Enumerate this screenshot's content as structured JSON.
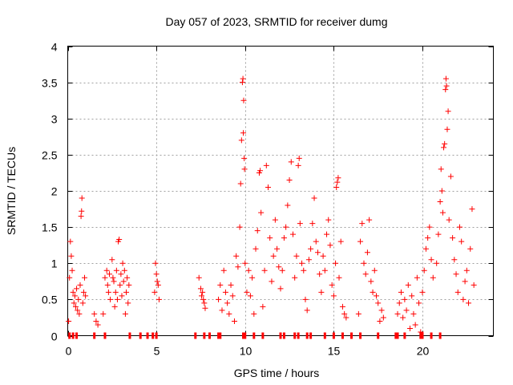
{
  "chart_data": {
    "type": "scatter",
    "title": "Day 057 of 2023, SRMTID for receiver dumg",
    "xlabel": "GPS time / hours",
    "ylabel": "SRMTID / TECUs",
    "xlim": [
      0,
      24
    ],
    "ylim": [
      0,
      4
    ],
    "x_ticks": [
      0,
      5,
      10,
      15,
      20
    ],
    "x_tick_labels": [
      "0",
      "5",
      "10",
      "15",
      "20"
    ],
    "y_ticks": [
      0,
      0.5,
      1,
      1.5,
      2,
      2.5,
      3,
      3.5,
      4
    ],
    "y_tick_labels": [
      "0",
      "0.5",
      "1",
      "1.5",
      "2",
      "2.5",
      "3",
      "3.5",
      "4"
    ],
    "grid": true,
    "marker": "+",
    "marker_color": "#ff0000",
    "series": [
      {
        "name": "SRMTID",
        "points": [
          [
            0.05,
            0.2
          ],
          [
            0.1,
            0.8
          ],
          [
            0.15,
            1.3
          ],
          [
            0.2,
            1.1
          ],
          [
            0.25,
            0.9
          ],
          [
            0.3,
            0.6
          ],
          [
            0.35,
            0.45
          ],
          [
            0.4,
            0.55
          ],
          [
            0.45,
            0.4
          ],
          [
            0.5,
            0.65
          ],
          [
            0.55,
            0.35
          ],
          [
            0.6,
            0.5
          ],
          [
            0.65,
            0.3
          ],
          [
            0.7,
            0.7
          ],
          [
            0.75,
            1.65
          ],
          [
            0.78,
            1.72
          ],
          [
            0.8,
            1.9
          ],
          [
            0.85,
            0.45
          ],
          [
            0.9,
            0.6
          ],
          [
            0.95,
            0.8
          ],
          [
            1.0,
            0.55
          ],
          [
            1.5,
            0.3
          ],
          [
            1.6,
            0.2
          ],
          [
            1.7,
            0.15
          ],
          [
            2.0,
            0.3
          ],
          [
            2.1,
            0.8
          ],
          [
            2.2,
            0.9
          ],
          [
            2.25,
            0.7
          ],
          [
            2.3,
            0.6
          ],
          [
            2.35,
            0.85
          ],
          [
            2.4,
            0.5
          ],
          [
            2.5,
            1.05
          ],
          [
            2.55,
            0.8
          ],
          [
            2.6,
            0.75
          ],
          [
            2.65,
            0.4
          ],
          [
            2.7,
            0.6
          ],
          [
            2.75,
            0.9
          ],
          [
            2.8,
            0.5
          ],
          [
            2.85,
            1.3
          ],
          [
            2.9,
            1.33
          ],
          [
            2.95,
            0.7
          ],
          [
            3.0,
            0.85
          ],
          [
            3.05,
            0.55
          ],
          [
            3.1,
            1.0
          ],
          [
            3.15,
            0.75
          ],
          [
            3.2,
            0.9
          ],
          [
            3.25,
            0.3
          ],
          [
            3.3,
            0.6
          ],
          [
            3.35,
            0.8
          ],
          [
            3.4,
            0.45
          ],
          [
            3.45,
            0.7
          ],
          [
            4.9,
            0.6
          ],
          [
            4.95,
            1.0
          ],
          [
            5.0,
            0.85
          ],
          [
            5.05,
            0.75
          ],
          [
            5.1,
            0.7
          ],
          [
            5.15,
            0.5
          ],
          [
            7.4,
            0.8
          ],
          [
            7.5,
            0.65
          ],
          [
            7.55,
            0.55
          ],
          [
            7.6,
            0.6
          ],
          [
            7.65,
            0.5
          ],
          [
            7.7,
            0.45
          ],
          [
            7.75,
            0.38
          ],
          [
            8.5,
            0.5
          ],
          [
            8.6,
            0.7
          ],
          [
            8.7,
            0.35
          ],
          [
            8.8,
            0.9
          ],
          [
            8.9,
            0.6
          ],
          [
            9.0,
            0.45
          ],
          [
            9.1,
            0.3
          ],
          [
            9.2,
            0.7
          ],
          [
            9.3,
            0.55
          ],
          [
            9.4,
            0.2
          ],
          [
            9.5,
            1.1
          ],
          [
            9.6,
            0.95
          ],
          [
            9.7,
            1.5
          ],
          [
            9.75,
            2.1
          ],
          [
            9.8,
            2.7
          ],
          [
            9.85,
            3.5
          ],
          [
            9.88,
            3.55
          ],
          [
            9.9,
            2.8
          ],
          [
            9.92,
            3.25
          ],
          [
            9.95,
            2.45
          ],
          [
            9.97,
            2.3
          ],
          [
            10.0,
            1.0
          ],
          [
            10.1,
            0.6
          ],
          [
            10.2,
            0.9
          ],
          [
            10.3,
            0.55
          ],
          [
            10.4,
            0.8
          ],
          [
            10.5,
            0.3
          ],
          [
            10.6,
            1.2
          ],
          [
            10.7,
            1.45
          ],
          [
            10.8,
            2.25
          ],
          [
            10.85,
            2.28
          ],
          [
            10.9,
            1.7
          ],
          [
            11.0,
            0.4
          ],
          [
            11.1,
            0.9
          ],
          [
            11.2,
            2.35
          ],
          [
            11.3,
            2.05
          ],
          [
            11.4,
            1.35
          ],
          [
            11.5,
            0.75
          ],
          [
            11.6,
            1.1
          ],
          [
            11.7,
            1.6
          ],
          [
            11.8,
            1.2
          ],
          [
            11.9,
            0.95
          ],
          [
            12.0,
            0.65
          ],
          [
            12.1,
            0.9
          ],
          [
            12.2,
            1.35
          ],
          [
            12.3,
            1.5
          ],
          [
            12.4,
            1.8
          ],
          [
            12.5,
            2.15
          ],
          [
            12.6,
            2.4
          ],
          [
            12.7,
            1.4
          ],
          [
            12.8,
            0.8
          ],
          [
            12.9,
            1.1
          ],
          [
            13.0,
            2.35
          ],
          [
            13.05,
            2.45
          ],
          [
            13.1,
            1.55
          ],
          [
            13.2,
            1.0
          ],
          [
            13.3,
            0.9
          ],
          [
            13.4,
            0.5
          ],
          [
            13.5,
            0.35
          ],
          [
            13.6,
            1.05
          ],
          [
            13.7,
            1.2
          ],
          [
            13.8,
            1.55
          ],
          [
            13.9,
            1.9
          ],
          [
            14.0,
            1.3
          ],
          [
            14.1,
            1.15
          ],
          [
            14.2,
            0.85
          ],
          [
            14.3,
            0.6
          ],
          [
            14.4,
            1.1
          ],
          [
            14.5,
            0.9
          ],
          [
            14.6,
            1.4
          ],
          [
            14.7,
            1.6
          ],
          [
            14.8,
            1.25
          ],
          [
            14.9,
            0.7
          ],
          [
            15.0,
            0.55
          ],
          [
            15.1,
            1.0
          ],
          [
            15.15,
            2.05
          ],
          [
            15.2,
            2.12
          ],
          [
            15.25,
            2.18
          ],
          [
            15.3,
            0.8
          ],
          [
            15.4,
            1.3
          ],
          [
            15.5,
            0.4
          ],
          [
            15.6,
            0.3
          ],
          [
            15.7,
            0.25
          ],
          [
            16.4,
            0.3
          ],
          [
            16.5,
            1.3
          ],
          [
            16.6,
            1.55
          ],
          [
            16.7,
            1.0
          ],
          [
            16.8,
            0.85
          ],
          [
            16.9,
            1.15
          ],
          [
            17.0,
            1.6
          ],
          [
            17.1,
            0.75
          ],
          [
            17.2,
            0.6
          ],
          [
            17.3,
            0.9
          ],
          [
            17.4,
            0.55
          ],
          [
            17.5,
            0.45
          ],
          [
            17.6,
            0.2
          ],
          [
            17.7,
            0.35
          ],
          [
            17.8,
            0.25
          ],
          [
            18.6,
            0.3
          ],
          [
            18.7,
            0.45
          ],
          [
            18.8,
            0.6
          ],
          [
            18.9,
            0.25
          ],
          [
            19.0,
            0.5
          ],
          [
            19.1,
            0.35
          ],
          [
            19.2,
            0.7
          ],
          [
            19.3,
            0.1
          ],
          [
            19.4,
            0.55
          ],
          [
            19.5,
            0.3
          ],
          [
            19.6,
            0.15
          ],
          [
            19.7,
            0.8
          ],
          [
            19.8,
            0.45
          ],
          [
            19.9,
            0.05
          ],
          [
            20.0,
            0.6
          ],
          [
            20.1,
            0.9
          ],
          [
            20.2,
            1.2
          ],
          [
            20.3,
            1.35
          ],
          [
            20.4,
            1.5
          ],
          [
            20.5,
            1.05
          ],
          [
            20.6,
            0.8
          ],
          [
            20.8,
            1.0
          ],
          [
            20.9,
            1.4
          ],
          [
            21.0,
            1.85
          ],
          [
            21.05,
            2.3
          ],
          [
            21.1,
            2.0
          ],
          [
            21.15,
            1.7
          ],
          [
            21.2,
            2.6
          ],
          [
            21.25,
            2.65
          ],
          [
            21.3,
            3.4
          ],
          [
            21.33,
            3.55
          ],
          [
            21.36,
            3.45
          ],
          [
            21.4,
            2.85
          ],
          [
            21.45,
            3.1
          ],
          [
            21.5,
            1.6
          ],
          [
            21.6,
            2.2
          ],
          [
            21.7,
            1.35
          ],
          [
            21.8,
            1.05
          ],
          [
            21.9,
            0.85
          ],
          [
            22.0,
            0.6
          ],
          [
            22.1,
            1.5
          ],
          [
            22.2,
            1.3
          ],
          [
            22.3,
            0.5
          ],
          [
            22.4,
            0.75
          ],
          [
            22.5,
            0.9
          ],
          [
            22.6,
            0.45
          ],
          [
            22.7,
            1.2
          ],
          [
            22.8,
            1.75
          ],
          [
            22.9,
            0.7
          ]
        ]
      }
    ],
    "baseline_markers": {
      "note": "small red markers drawn on the zero line (gaps/flags)",
      "x": [
        0.1,
        0.3,
        0.5,
        1.5,
        2.1,
        3.5,
        4.1,
        4.5,
        4.8,
        5.0,
        7.2,
        7.7,
        8.0,
        8.5,
        8.6,
        9.9,
        10.0,
        10.5,
        11.0,
        12.0,
        12.2,
        12.8,
        13.0,
        13.5,
        13.7,
        14.5,
        15.0,
        15.5,
        16.0,
        16.5,
        17.5,
        18.5,
        18.6,
        19.0,
        19.9,
        20.0,
        20.5,
        21.0
      ]
    }
  }
}
